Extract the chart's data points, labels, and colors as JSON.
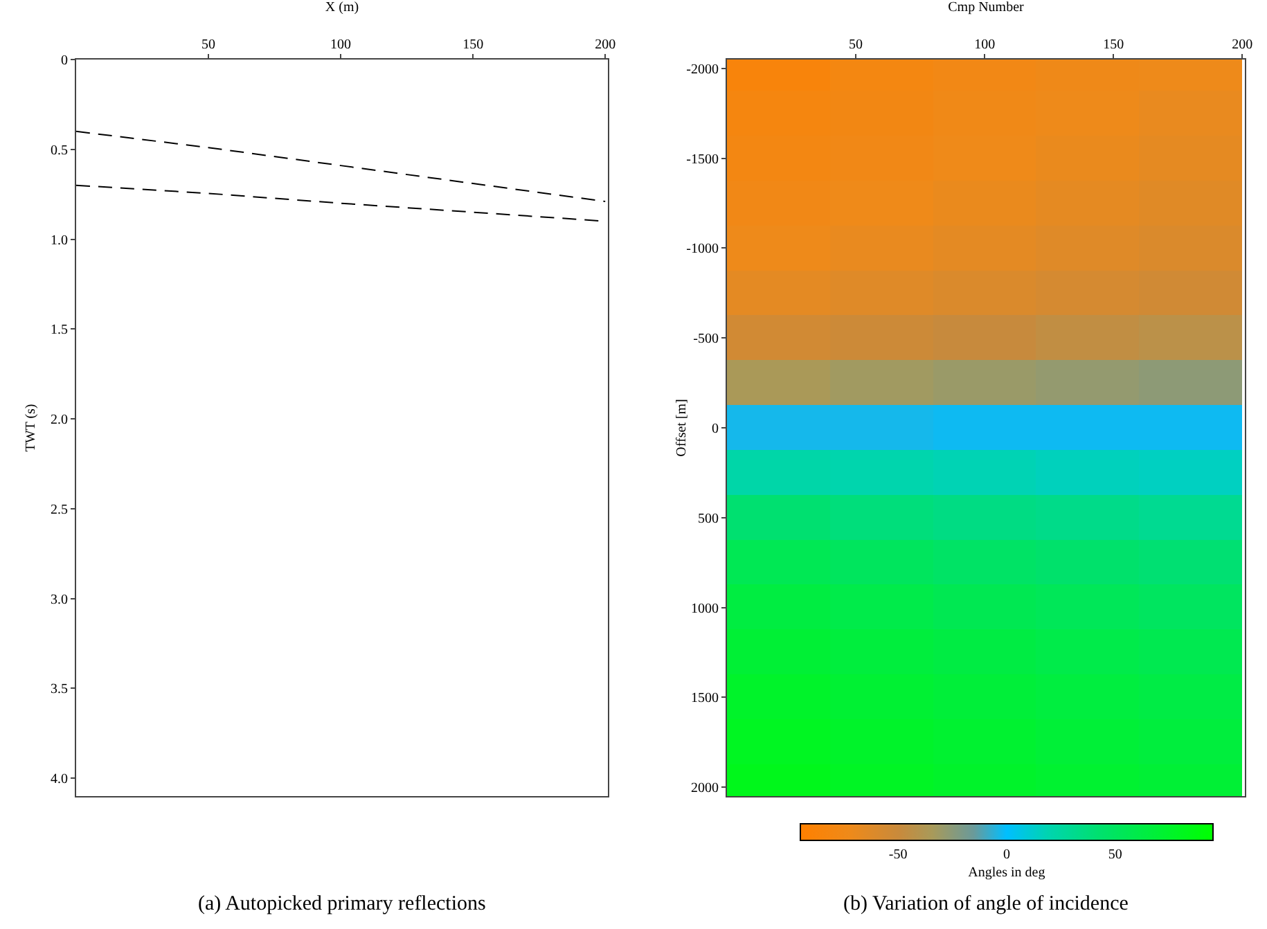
{
  "chart_data": [
    {
      "type": "line",
      "xlabel": "X (m)",
      "ylabel": "TWT (s)",
      "x": [
        0,
        50,
        100,
        150,
        200
      ],
      "series": [
        {
          "color": "#000000",
          "values": [
            0.4,
            0.49,
            0.59,
            0.69,
            0.79
          ]
        },
        {
          "color": "#000000",
          "values": [
            0.7,
            0.745,
            0.8,
            0.85,
            0.9
          ]
        }
      ],
      "xlim": [
        0,
        201
      ],
      "xticks": [
        50,
        100,
        150,
        200
      ],
      "ylim": [
        4.1,
        0
      ],
      "yticks": [
        0,
        0.5,
        {
          "value": 1,
          "label": "1.0"
        },
        1.5,
        {
          "value": 2,
          "label": "2.0"
        },
        2.5,
        {
          "value": 3,
          "label": "3.0"
        },
        3.5,
        {
          "value": 4,
          "label": "4.0"
        }
      ],
      "line_style": "dashed",
      "marker": "none",
      "grid": false,
      "annotations": [
        "(a) Autopicked primary reflections"
      ]
    },
    {
      "type": "heatmap",
      "xlabel": "Cmp Number",
      "ylabel": "Offset [m]",
      "clabel": "Angles in deg",
      "x": [
        20,
        60,
        100,
        140,
        180
      ],
      "y": [
        -2000,
        -1750,
        -1500,
        -1250,
        -1000,
        -750,
        -500,
        -250,
        0,
        250,
        500,
        750,
        1000,
        1250,
        1500,
        1750,
        2000
      ],
      "cells": [
        [
          -85,
          -80,
          -77,
          -74,
          -72
        ],
        [
          -82,
          -78,
          -75,
          -72,
          -69
        ],
        [
          -79,
          -76,
          -73,
          -70,
          -67
        ],
        [
          -76,
          -73,
          -70,
          -67,
          -64
        ],
        [
          -72,
          -69,
          -66,
          -63,
          -60
        ],
        [
          -66,
          -63,
          -60,
          -57,
          -54
        ],
        [
          -55,
          -52,
          -49,
          -46,
          -43
        ],
        [
          -35,
          -32,
          -30,
          -28,
          -26
        ],
        [
          -3,
          -3,
          -2,
          -2,
          -2
        ],
        [
          22,
          20,
          18,
          16,
          15
        ],
        [
          42,
          38,
          35,
          33,
          30
        ],
        [
          55,
          51,
          47,
          44,
          41
        ],
        [
          64,
          60,
          56,
          53,
          50
        ],
        [
          70,
          66,
          63,
          60,
          57
        ],
        [
          75,
          71,
          68,
          65,
          62
        ],
        [
          79,
          75,
          72,
          69,
          66
        ],
        [
          82,
          78,
          75,
          72,
          70
        ]
      ],
      "xlim": [
        0,
        201
      ],
      "xticks": [
        50,
        100,
        150,
        200
      ],
      "ylim": [
        2050,
        -2050
      ],
      "yticks": [
        -2000,
        -1500,
        -1000,
        -500,
        0,
        500,
        1000,
        1500,
        2000
      ],
      "clim": [
        -95,
        95
      ],
      "cticks": [
        -50,
        0,
        50
      ],
      "annotations": [
        "(b) Variation of angle of incidence"
      ]
    }
  ]
}
